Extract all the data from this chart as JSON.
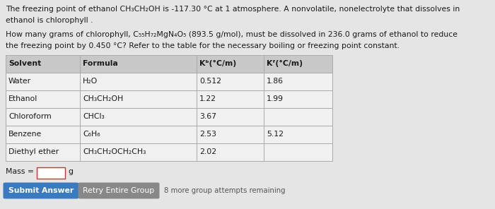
{
  "bg_color": "#e5e5e5",
  "white": "#ffffff",
  "text_color": "#1a1a1a",
  "title_line1": "The freezing point of ethanol CH₃CH₂OH is -117.30 °C at 1 atmosphere. A nonvolatile, nonelectrolyte that dissolves in",
  "title_line2": "ethanol is chlorophyll .",
  "question_line1": "How many grams of chlorophyll, C₅₅H₇₂MgN₄O₅ (893.5 g/mol), must be dissolved in 236.0 grams of ethanol to reduce",
  "question_line2": "the freezing point by 0.450 °C? Refer to the table for the necessary boiling or freezing point constant.",
  "table_headers": [
    "Solvent",
    "Formula",
    "Kᵇ(°C/m)",
    "Kᶠ(°C/m)"
  ],
  "table_rows": [
    [
      "Water",
      "H₂O",
      "0.512",
      "1.86"
    ],
    [
      "Ethanol",
      "CH₃CH₂OH",
      "1.22",
      "1.99"
    ],
    [
      "Chloroform",
      "CHCl₃",
      "3.67",
      ""
    ],
    [
      "Benzene",
      "C₆H₆",
      "2.53",
      "5.12"
    ],
    [
      "Diethyl ether",
      "CH₃CH₂OCH₂CH₃",
      "2.02",
      ""
    ]
  ],
  "mass_label": "Mass = ",
  "mass_unit": "g",
  "submit_btn_text": "Submit Answer",
  "submit_btn_color": "#3a7bbf",
  "retry_btn_text": "Retry Entire Group",
  "retry_btn_color": "#888888",
  "remaining_text": "8 more group attempts remaining",
  "font_size_text": 7.8,
  "font_size_table": 7.8,
  "table_header_bg": "#c8c8c8",
  "table_row_bg": "#f0f0f0",
  "table_border_color": "#aaaaaa",
  "mass_box_border": "#cc3333"
}
